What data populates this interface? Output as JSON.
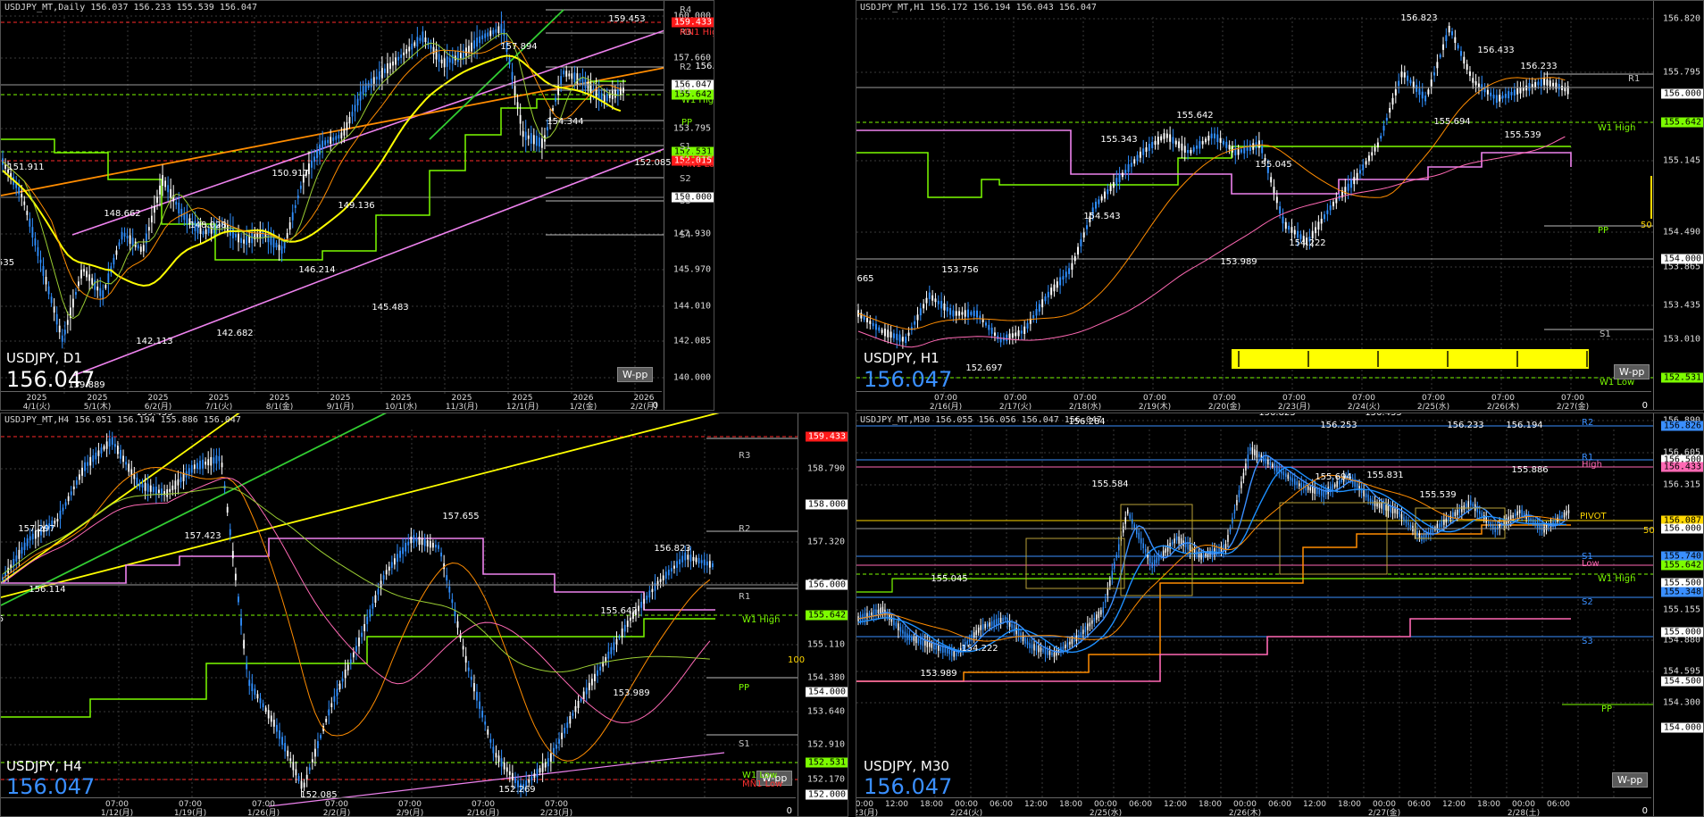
{
  "panes": [
    {
      "id": "daily",
      "header": "USDJPY_MT,Daily  156.037 156.233 155.539 156.047",
      "symbol": "USDJPY, D1",
      "price": "156.047",
      "wpp": "W-pp",
      "pricecolor": "#ffffff",
      "zero": "0",
      "ticks": [
        "160.000",
        "157.660",
        "153.795",
        "150.000",
        "147.930",
        "145.970",
        "144.010",
        "142.085",
        "140.000"
      ],
      "tags": [
        {
          "text": "159.433",
          "bg": "#ff1a1a",
          "fg": "#ffffff"
        },
        {
          "text": "156.047",
          "bg": "#ffffff",
          "fg": "#000000"
        },
        {
          "text": "155.642",
          "bg": "#7cfc00",
          "fg": "#000000"
        },
        {
          "text": "152.531",
          "bg": "#7cfc00",
          "fg": "#000000"
        },
        {
          "text": "152.015",
          "bg": "#ff1a1a",
          "fg": "#ffffff"
        },
        {
          "text": "150.000",
          "bg": "#ffffff",
          "fg": "#000000"
        }
      ],
      "levels": [
        {
          "text": "R4",
          "color": "#c0c0c0"
        },
        {
          "text": "R3",
          "color": "#c0c0c0"
        },
        {
          "text": "MN1 High",
          "color": "#ff3030"
        },
        {
          "text": "R2",
          "color": "#c0c0c0"
        },
        {
          "text": "R1",
          "color": "#c0c0c0"
        },
        {
          "text": "W1 High",
          "color": "#7cfc00"
        },
        {
          "text": "PP",
          "color": "#7cfc00"
        },
        {
          "text": "S1",
          "color": "#c0c0c0"
        },
        {
          "text": "W1 Low",
          "color": "#7cfc00"
        },
        {
          "text": "MN1 Low",
          "color": "#ff3030"
        },
        {
          "text": "S2",
          "color": "#c0c0c0"
        },
        {
          "text": "S3",
          "color": "#c0c0c0"
        },
        {
          "text": "S4",
          "color": "#c0c0c0"
        }
      ],
      "extrema": [
        "159.453",
        "157.894",
        "156.823",
        "154.344",
        "152.085",
        "151.911",
        "150.917",
        "149.136",
        "148.028",
        "146.214",
        "145.483",
        "142.113",
        "142.682",
        "148.662",
        ".535",
        "139.889"
      ],
      "scale_marker": "200",
      "xlabels": [
        {
          "a": "2025",
          "b": "4/1(火)"
        },
        {
          "a": "2025",
          "b": "5/1(木)"
        },
        {
          "a": "2025",
          "b": "6/2(月)"
        },
        {
          "a": "2025",
          "b": "7/1(火)"
        },
        {
          "a": "2025",
          "b": "8/1(金)"
        },
        {
          "a": "2025",
          "b": "9/1(月)"
        },
        {
          "a": "2025",
          "b": "10/1(水)"
        },
        {
          "a": "2025",
          "b": "11/3(月)"
        },
        {
          "a": "2025",
          "b": "12/1(月)"
        },
        {
          "a": "2026",
          "b": "1/2(金)"
        },
        {
          "a": "2026",
          "b": "2/2(月)"
        }
      ]
    },
    {
      "id": "h1",
      "header": "USDJPY_MT,H1  156.172 156.194 156.043 156.047",
      "symbol": "USDJPY, H1",
      "price": "156.047",
      "wpp": "W-pp",
      "pricecolor": "#3a8fff",
      "zero": "0",
      "ticks": [
        "156.820",
        "155.795",
        "155.145",
        "154.490",
        "153.865",
        "153.435",
        "153.010",
        "152.531"
      ],
      "tags": [
        {
          "text": "156.000",
          "bg": "#ffffff",
          "fg": "#000000"
        },
        {
          "text": "155.642",
          "bg": "#7cfc00",
          "fg": "#000000"
        },
        {
          "text": "154.000",
          "bg": "#ffffff",
          "fg": "#000000"
        },
        {
          "text": "152.531",
          "bg": "#7cfc00",
          "fg": "#000000"
        }
      ],
      "levels": [
        {
          "text": "R1",
          "color": "#c0c0c0"
        },
        {
          "text": "W1 High",
          "color": "#7cfc00"
        },
        {
          "text": "PP",
          "color": "#7cfc00"
        },
        {
          "text": "S1",
          "color": "#c0c0c0"
        },
        {
          "text": "W1 Low",
          "color": "#7cfc00"
        }
      ],
      "extrema": [
        "156.823",
        "156.433",
        "156.233",
        "155.642",
        "155.343",
        "155.045",
        "155.694",
        "155.539",
        "154.543",
        "154.222",
        "153.989",
        "153.756",
        "152.697",
        "665"
      ],
      "scale_marker": "50",
      "xlabels": [
        {
          "a": "07:00",
          "b": "2/16(月)"
        },
        {
          "a": "07:00",
          "b": "2/17(火)"
        },
        {
          "a": "07:00",
          "b": "2/18(水)"
        },
        {
          "a": "07:00",
          "b": "2/19(木)"
        },
        {
          "a": "07:00",
          "b": "2/20(金)"
        },
        {
          "a": "07:00",
          "b": "2/23(月)"
        },
        {
          "a": "07:00",
          "b": "2/24(火)"
        },
        {
          "a": "07:00",
          "b": "2/25(水)"
        },
        {
          "a": "07:00",
          "b": "2/26(木)"
        },
        {
          "a": "07:00",
          "b": "2/27(金)"
        }
      ]
    },
    {
      "id": "h4",
      "header": "USDJPY_MT,H4  156.051 156.194 155.886 156.047",
      "symbol": "USDJPY, H4",
      "price": "156.047",
      "wpp": "W-pp",
      "pricecolor": "#3a8fff",
      "zero": "0",
      "ticks": [
        "158.790",
        "157.320",
        "156.580",
        "155.110",
        "154.380",
        "153.640",
        "152.910",
        "152.170"
      ],
      "tags": [
        {
          "text": "159.433",
          "bg": "#ff1a1a",
          "fg": "#ffffff"
        },
        {
          "text": "158.000",
          "bg": "#ffffff",
          "fg": "#000000"
        },
        {
          "text": "156.000",
          "bg": "#ffffff",
          "fg": "#000000"
        },
        {
          "text": "155.642",
          "bg": "#7cfc00",
          "fg": "#000000"
        },
        {
          "text": "154.000",
          "bg": "#ffffff",
          "fg": "#000000"
        },
        {
          "text": "152.531",
          "bg": "#7cfc00",
          "fg": "#000000"
        },
        {
          "text": "152.000",
          "bg": "#ffffff",
          "fg": "#000000"
        }
      ],
      "levels": [
        {
          "text": "MN1 High",
          "color": "#ff3030"
        },
        {
          "text": "R3",
          "color": "#c0c0c0"
        },
        {
          "text": "R2",
          "color": "#c0c0c0"
        },
        {
          "text": "R1",
          "color": "#c0c0c0"
        },
        {
          "text": "W1 High",
          "color": "#7cfc00"
        },
        {
          "text": "PP",
          "color": "#7cfc00"
        },
        {
          "text": "S1",
          "color": "#c0c0c0"
        },
        {
          "text": "W1 Low",
          "color": "#7cfc00"
        },
        {
          "text": "MN1 Low",
          "color": "#ff3030"
        }
      ],
      "extrema": [
        "159.453",
        "159.225",
        "157.297",
        "157.423",
        "157.655",
        "156.823",
        "155.642",
        "153.989",
        "156.114",
        "152.269",
        "152.085",
        "5"
      ],
      "scale_marker": "100",
      "xlabels": [
        {
          "a": "07:00",
          "b": "1/12(月)"
        },
        {
          "a": "07:00",
          "b": "1/19(月)"
        },
        {
          "a": "07:00",
          "b": "1/26(月)"
        },
        {
          "a": "07:00",
          "b": "2/2(月)"
        },
        {
          "a": "07:00",
          "b": "2/9(月)"
        },
        {
          "a": "07:00",
          "b": "2/16(月)"
        },
        {
          "a": "07:00",
          "b": "2/23(月)"
        }
      ]
    },
    {
      "id": "m30",
      "header": "USDJPY_MT,M30  156.055 156.056 156.047 156.047",
      "symbol": "USDJPY, M30",
      "price": "156.047",
      "wpp": "W-pp",
      "pricecolor": "#3a8fff",
      "zero": "0",
      "ticks": [
        "156.890",
        "156.605",
        "156.315",
        "155.155",
        "154.880",
        "154.595",
        "154.300"
      ],
      "tags": [
        {
          "text": "156.826",
          "bg": "#3a8fff",
          "fg": "#000000"
        },
        {
          "text": "156.500",
          "bg": "#ffffff",
          "fg": "#000000"
        },
        {
          "text": "156.433",
          "bg": "#ff69b4",
          "fg": "#000000"
        },
        {
          "text": "156.087",
          "bg": "#ffd700",
          "fg": "#000000"
        },
        {
          "text": "156.000",
          "bg": "#ffffff",
          "fg": "#000000"
        },
        {
          "text": "155.740",
          "bg": "#3a8fff",
          "fg": "#000000"
        },
        {
          "text": "155.642",
          "bg": "#7cfc00",
          "fg": "#000000"
        },
        {
          "text": "155.500",
          "bg": "#ffffff",
          "fg": "#000000"
        },
        {
          "text": "155.348",
          "bg": "#3a8fff",
          "fg": "#000000"
        },
        {
          "text": "155.000",
          "bg": "#ffffff",
          "fg": "#000000"
        },
        {
          "text": "154.500",
          "bg": "#ffffff",
          "fg": "#000000"
        },
        {
          "text": "154.000",
          "bg": "#ffffff",
          "fg": "#000000"
        }
      ],
      "levels": [
        {
          "text": "R2",
          "color": "#3a8fff"
        },
        {
          "text": "R1",
          "color": "#3a8fff"
        },
        {
          "text": "High",
          "color": "#ff69b4"
        },
        {
          "text": "PIVOT",
          "color": "#ffd700"
        },
        {
          "text": "S1",
          "color": "#3a8fff"
        },
        {
          "text": "Low",
          "color": "#ff69b4"
        },
        {
          "text": "W1 High",
          "color": "#7cfc00"
        },
        {
          "text": "S2",
          "color": "#3a8fff"
        },
        {
          "text": "S3",
          "color": "#3a8fff"
        },
        {
          "text": "PP",
          "color": "#7cfc00"
        }
      ],
      "extrema": [
        "156.823",
        "156.433",
        "156.284",
        "156.253",
        "156.233",
        "156.194",
        "155.886",
        "155.831",
        "155.694",
        "155.584",
        "155.539",
        "155.045",
        "154.222",
        "153.989"
      ],
      "scale_marker": "50",
      "xlabels": [
        {
          "a": "00:00",
          "b": "2/23(月)"
        },
        {
          "a": "12:00",
          "b": ""
        },
        {
          "a": "18:00",
          "b": ""
        },
        {
          "a": "00:00",
          "b": "2/24(火)"
        },
        {
          "a": "06:00",
          "b": ""
        },
        {
          "a": "12:00",
          "b": ""
        },
        {
          "a": "18:00",
          "b": ""
        },
        {
          "a": "00:00",
          "b": "2/25(水)"
        },
        {
          "a": "06:00",
          "b": ""
        },
        {
          "a": "12:00",
          "b": ""
        },
        {
          "a": "18:00",
          "b": ""
        },
        {
          "a": "00:00",
          "b": "2/26(木)"
        },
        {
          "a": "06:00",
          "b": ""
        },
        {
          "a": "12:00",
          "b": ""
        },
        {
          "a": "18:00",
          "b": ""
        },
        {
          "a": "00:00",
          "b": "2/27(金)"
        },
        {
          "a": "06:00",
          "b": ""
        },
        {
          "a": "12:00",
          "b": ""
        },
        {
          "a": "18:00",
          "b": ""
        },
        {
          "a": "00:00",
          "b": "2/28(土)"
        },
        {
          "a": "06:00",
          "b": ""
        }
      ]
    }
  ]
}
